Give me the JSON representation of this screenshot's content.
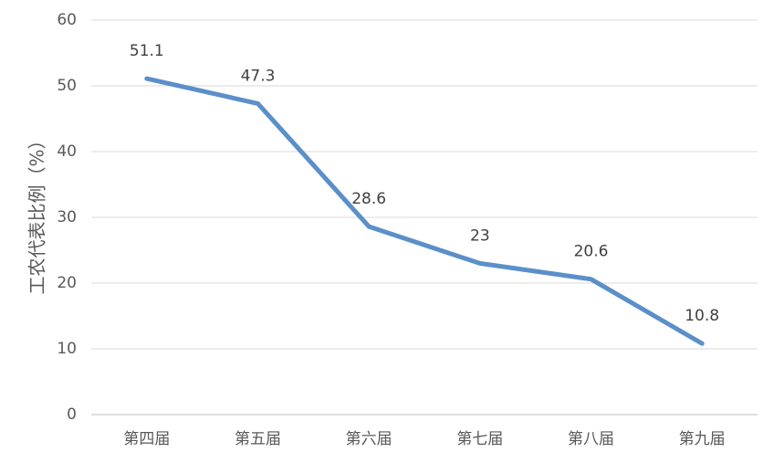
{
  "chart_data": {
    "type": "line",
    "title": "",
    "xlabel": "",
    "ylabel": "工农代表比例（%）",
    "categories": [
      "第四届",
      "第五届",
      "第六届",
      "第七届",
      "第八届",
      "第九届"
    ],
    "series": [
      {
        "values": [
          51.1,
          47.3,
          28.6,
          23,
          20.6,
          10.8
        ]
      }
    ],
    "data_labels": [
      "51.1",
      "47.3",
      "28.6",
      "23",
      "20.6",
      "10.8"
    ],
    "ylim": [
      0,
      60
    ],
    "yticks": [
      0,
      10,
      20,
      30,
      40,
      50,
      60
    ],
    "grid": true,
    "legend": "none",
    "colors": {
      "line": "#5b8fc9"
    }
  }
}
